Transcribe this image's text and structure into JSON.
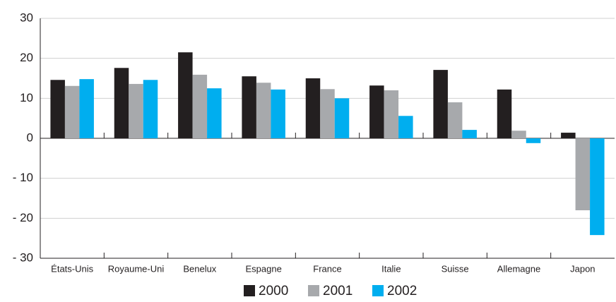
{
  "chart_data": {
    "type": "bar",
    "categories": [
      "États-Unis",
      "Royaume-Uni",
      "Benelux",
      "Espagne",
      "France",
      "Italie",
      "Suisse",
      "Allemagne",
      "Japon"
    ],
    "series": [
      {
        "name": "2000",
        "color": "#231f20",
        "values": [
          14.6,
          17.6,
          21.5,
          15.5,
          15.0,
          13.2,
          17.1,
          12.2,
          1.4
        ]
      },
      {
        "name": "2001",
        "color": "#a7a9ac",
        "values": [
          13.1,
          13.6,
          15.9,
          13.9,
          12.3,
          12.0,
          9.0,
          1.9,
          -18.0
        ]
      },
      {
        "name": "2002",
        "color": "#00aeef",
        "values": [
          14.8,
          14.6,
          12.5,
          12.2,
          10.0,
          5.6,
          2.1,
          -1.2,
          -24.2
        ]
      }
    ],
    "ylim": [
      -30,
      30
    ],
    "yticks": [
      {
        "value": -30,
        "label": "- 30"
      },
      {
        "value": -20,
        "label": "- 20"
      },
      {
        "value": -10,
        "label": "- 10"
      },
      0,
      10,
      20,
      30
    ],
    "grid": true
  }
}
